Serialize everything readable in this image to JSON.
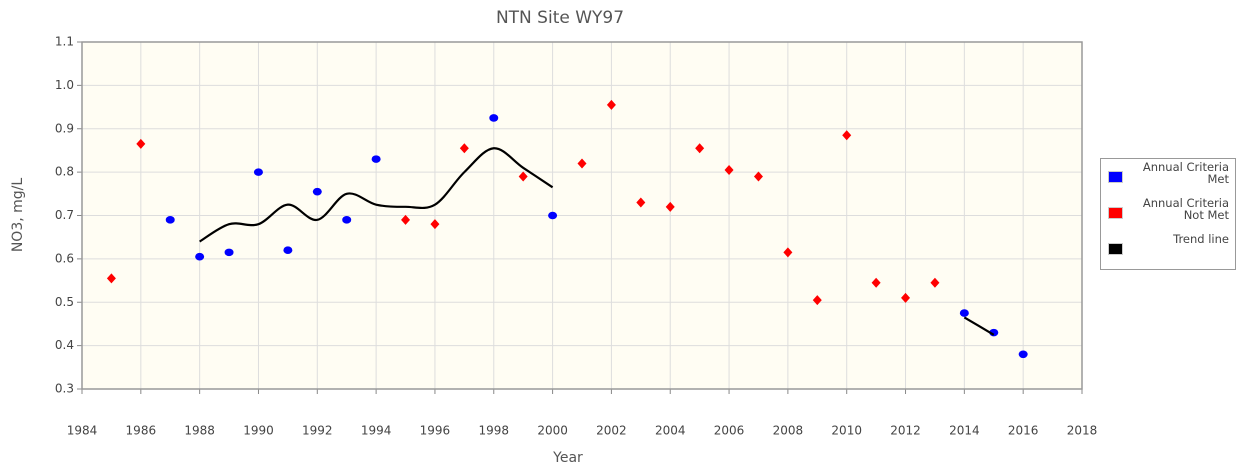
{
  "chart_data": {
    "type": "scatter",
    "title": "NTN Site WY97",
    "xlabel": "Year",
    "ylabel": "NO3, mg/L",
    "xlim": [
      1984,
      2018
    ],
    "xticks": [
      1984,
      1986,
      1988,
      1990,
      1992,
      1994,
      1996,
      1998,
      2000,
      2002,
      2004,
      2006,
      2008,
      2010,
      2012,
      2014,
      2016,
      2018
    ],
    "ylim": [
      0.3,
      1.1
    ],
    "yticks": [
      0.3,
      0.4,
      0.5,
      0.6,
      0.7,
      0.8,
      0.9,
      {
        "value": 1,
        "label": "1.0"
      },
      1.1
    ],
    "grid": true,
    "legend": "right",
    "series": [
      {
        "name": "Annual Criteria Met",
        "color": "#0000ff",
        "marker": "circle",
        "x": [
          1987,
          1988,
          1989,
          1990,
          1991,
          1992,
          1993,
          1994,
          1998,
          2000,
          2014,
          2015,
          2016
        ],
        "values": [
          0.69,
          0.605,
          0.615,
          0.8,
          0.62,
          0.755,
          0.69,
          0.83,
          0.925,
          0.7,
          0.475,
          0.43,
          0.38
        ]
      },
      {
        "name": "Annual Criteria Not Met",
        "color": "#ff0000",
        "marker": "diamond",
        "x": [
          1985,
          1986,
          1995,
          1996,
          1997,
          1999,
          2001,
          2002,
          2003,
          2004,
          2005,
          2006,
          2007,
          2008,
          2009,
          2010,
          2011,
          2012,
          2013
        ],
        "values": [
          0.555,
          0.865,
          0.69,
          0.68,
          0.855,
          0.79,
          0.82,
          0.955,
          0.73,
          0.72,
          0.855,
          0.805,
          0.79,
          0.615,
          0.505,
          0.885,
          0.545,
          0.51,
          0.545
        ]
      },
      {
        "name": "Trend line",
        "color": "#000000",
        "marker": "line",
        "x": [
          1988,
          1989,
          1990,
          1991,
          1992,
          1993,
          1994,
          1995,
          1996,
          1997,
          1998,
          1999,
          2000,
          2001,
          2013,
          2014,
          2015
        ],
        "values": [
          0.64,
          0.68,
          0.68,
          0.725,
          0.69,
          0.75,
          0.725,
          0.72,
          0.725,
          0.8,
          0.855,
          0.81,
          0.765,
          null,
          null,
          0.465,
          0.425
        ]
      }
    ]
  }
}
